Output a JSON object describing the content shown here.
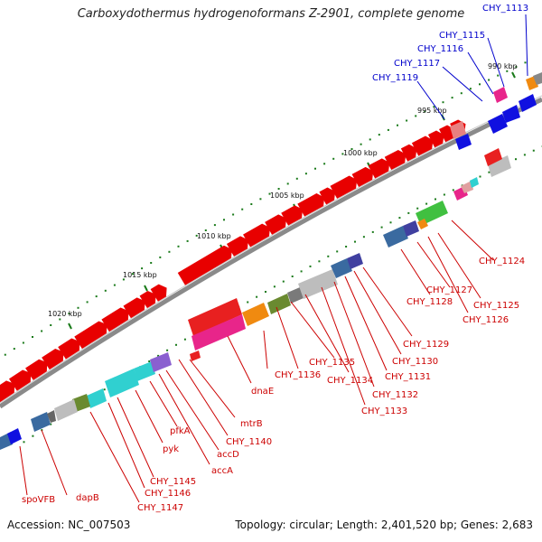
{
  "title": "Carboxydothermus hydrogenoformans Z-2901, complete genome",
  "accession": "Accession: NC_007503",
  "summary": "Topology: circular; Length: 2,401,520 bp; Genes: 2,683",
  "ticks": [
    "990 kbp",
    "995 kbp",
    "1000 kbp",
    "1005 kbp",
    "1010 kbp",
    "1015 kbp",
    "1020 kbp"
  ],
  "labels_top": [
    "CHY_1113",
    "CHY_1115",
    "CHY_1116",
    "CHY_1117",
    "CHY_1119"
  ],
  "labels_bottom": [
    "CHY_1124",
    "CHY_1125",
    "CHY_1126",
    "CHY_1127",
    "CHY_1128",
    "CHY_1129",
    "CHY_1130",
    "CHY_1131",
    "CHY_1132",
    "CHY_1133",
    "CHY_1134",
    "CHY_1135",
    "CHY_1136",
    "dnaE",
    "mtrB",
    "CHY_1140",
    "accD",
    "accA",
    "pfkA",
    "pyk",
    "CHY_1145",
    "CHY_1146",
    "CHY_1147",
    "dapB",
    "spoVFB"
  ],
  "colors": {
    "forward": "#e80000",
    "label_red": "#cc0000",
    "label_blue": "#0000cc",
    "backbone": "#808080"
  }
}
